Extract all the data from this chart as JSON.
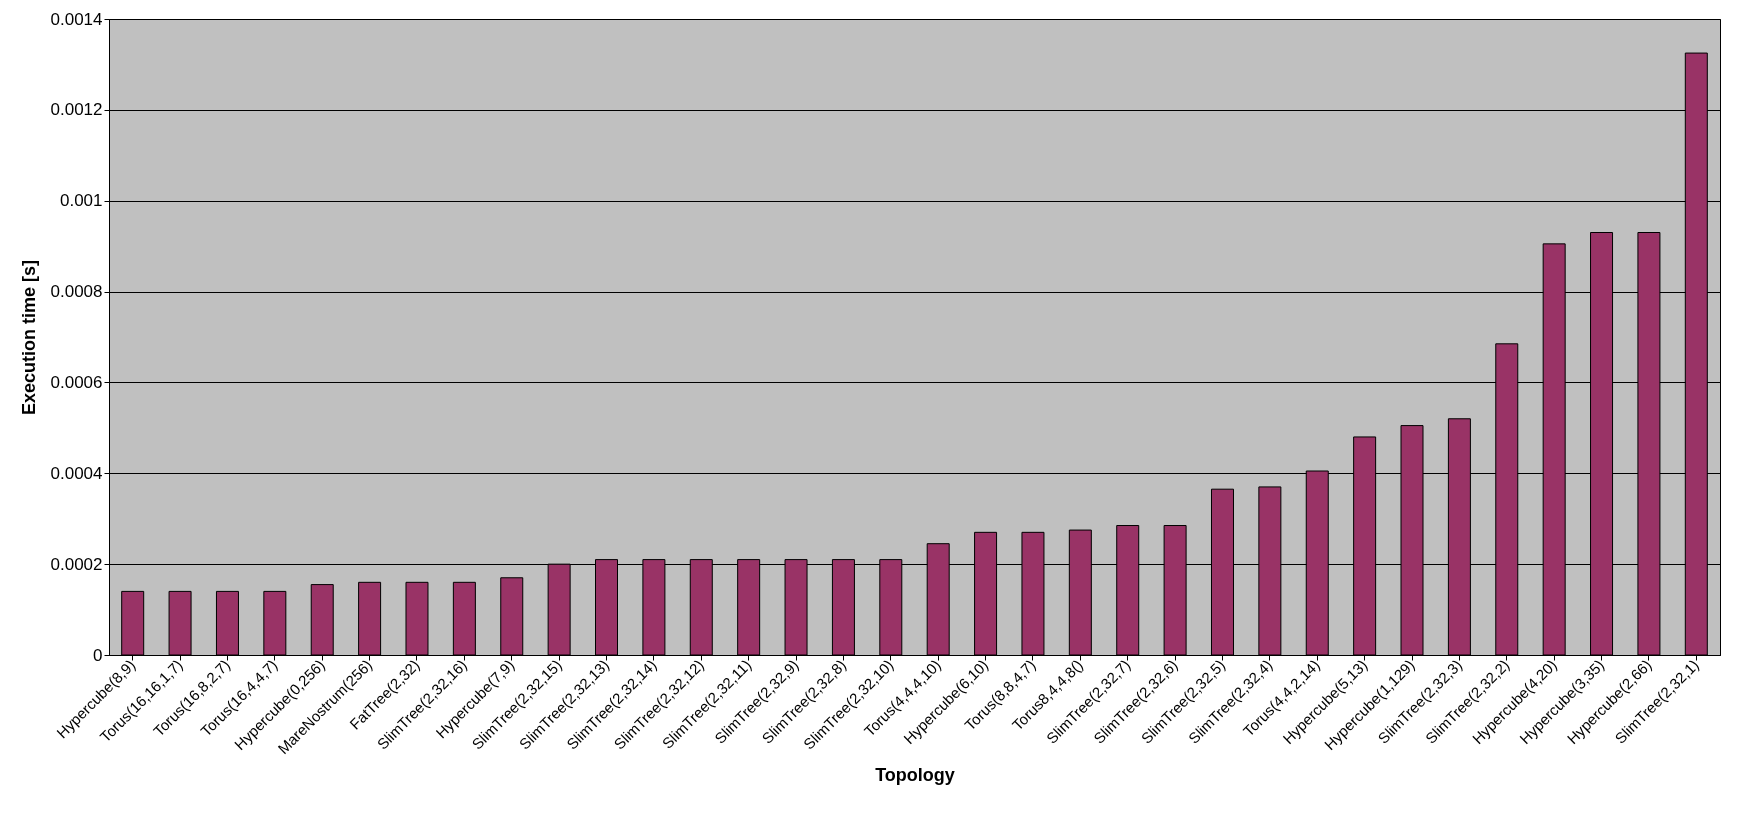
{
  "chart_data": {
    "type": "bar",
    "xlabel": "Topology",
    "ylabel": "Execution time [s]",
    "categories": [
      "Hypercube(8,9)",
      "Torus(16,16,1,7)",
      "Torus(16,8,2,7)",
      "Torus(16,4,4,7)",
      "Hypercube(0,256)",
      "MareNostrum(256)",
      "FatTree(2,32)",
      "SlimTree(2,32,16)",
      "Hypercube(7,9)",
      "SlimTree(2,32,15)",
      "SlimTree(2,32,13)",
      "SlimTree(2,32,14)",
      "SlimTree(2,32,12)",
      "SlimTree(2,32,11)",
      "SlimTree(2,32,9)",
      "SlimTree(2,32,8)",
      "SlimTree(2,32,10)",
      "Torus(4,4,4,10)",
      "Hypercube(6,10)",
      "Torus(8,8,4,7)",
      "Torus8,4,4,8()",
      "SlimTree(2,32,7)",
      "SlimTree(2,32,6)",
      "SlimTree(2,32,5)",
      "SlimTree(2,32,4)",
      "Torus(4,4,2,14)",
      "Hypercube(5,13)",
      "Hypercube(1,129)",
      "SlimTree(2,32,3)",
      "SlimTree(2,32,2)",
      "Hypercube(4,20)",
      "Hypercube(3,35)",
      "Hypercube(2,66)",
      "SlimTree(2,32,1)"
    ],
    "values": [
      0.00014,
      0.00014,
      0.00014,
      0.00014,
      0.000155,
      0.00016,
      0.00016,
      0.00016,
      0.00017,
      0.0002,
      0.00021,
      0.00021,
      0.00021,
      0.00021,
      0.00021,
      0.00021,
      0.00021,
      0.000245,
      0.00027,
      0.00027,
      0.000275,
      0.000285,
      0.000285,
      0.000365,
      0.00037,
      0.000405,
      0.00048,
      0.000505,
      0.00052,
      0.000685,
      0.000905,
      0.00093,
      0.00093,
      0.001325
    ],
    "color": "#993366",
    "ylim": [
      0,
      0.0014
    ],
    "yticks": [
      0,
      0.0002,
      0.0004,
      0.0006,
      0.0008,
      0.001,
      0.0012,
      0.0014
    ],
    "grid": "y"
  }
}
